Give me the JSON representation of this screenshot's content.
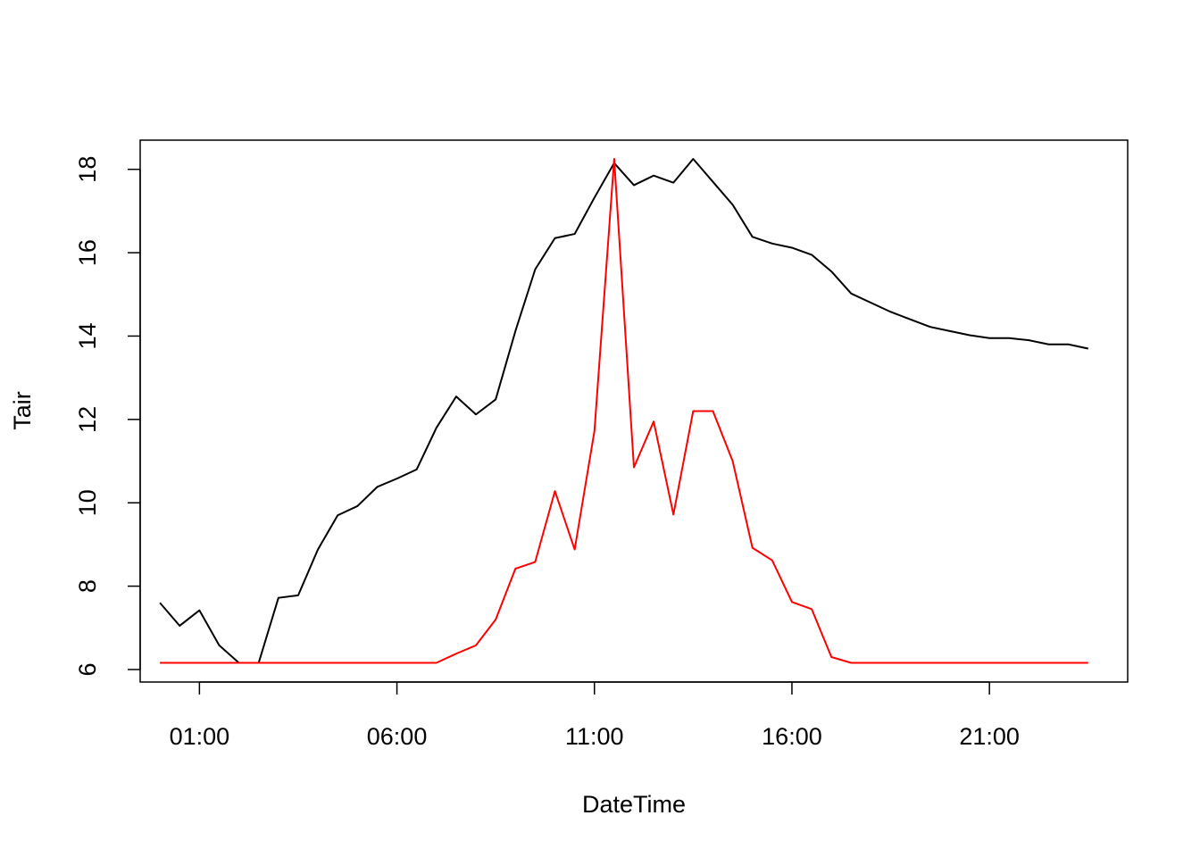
{
  "chart_data": {
    "type": "line",
    "title": "",
    "xlabel": "DateTime",
    "ylabel": "Tair",
    "x_unit": "hours",
    "xlim": [
      -0.5,
      24.5
    ],
    "ylim": [
      5.7,
      18.7
    ],
    "x_ticks": [
      {
        "value": 1,
        "label": "01:00"
      },
      {
        "value": 6,
        "label": "06:00"
      },
      {
        "value": 11,
        "label": "11:00"
      },
      {
        "value": 16,
        "label": "16:00"
      },
      {
        "value": 21,
        "label": "21:00"
      }
    ],
    "y_ticks": [
      {
        "value": 6,
        "label": "6"
      },
      {
        "value": 8,
        "label": "8"
      },
      {
        "value": 10,
        "label": "10"
      },
      {
        "value": 12,
        "label": "12"
      },
      {
        "value": 14,
        "label": "14"
      },
      {
        "value": 16,
        "label": "16"
      },
      {
        "value": 18,
        "label": "18"
      }
    ],
    "grid": false,
    "legend": "none",
    "x": [
      0,
      0.5,
      1,
      1.5,
      2,
      2.5,
      3,
      3.5,
      4,
      4.5,
      5,
      5.5,
      6,
      6.5,
      7,
      7.5,
      8,
      8.5,
      9,
      9.5,
      10,
      10.5,
      11,
      11.5,
      12,
      12.5,
      13,
      13.5,
      14,
      14.5,
      15,
      15.5,
      16,
      16.5,
      17,
      17.5,
      18,
      18.5,
      19,
      19.5,
      20,
      20.5,
      21,
      21.5,
      22,
      22.5,
      23,
      23.5
    ],
    "series": [
      {
        "color": "#000000",
        "values": [
          7.6,
          7.05,
          7.42,
          6.58,
          6.16,
          6.16,
          7.72,
          7.78,
          8.88,
          9.7,
          9.92,
          10.38,
          10.58,
          10.8,
          11.8,
          12.55,
          12.12,
          12.48,
          14.12,
          15.6,
          16.35,
          16.45,
          17.32,
          18.15,
          17.62,
          17.85,
          17.68,
          18.25,
          17.7,
          17.15,
          16.38,
          16.22,
          16.12,
          15.95,
          15.55,
          15.02,
          14.8,
          14.58,
          14.4,
          14.22,
          14.12,
          14.02,
          13.95,
          13.95,
          13.9,
          13.8,
          13.8,
          13.7
        ]
      },
      {
        "color": "#FF0000",
        "values": [
          6.16,
          6.16,
          6.16,
          6.16,
          6.16,
          6.16,
          6.16,
          6.16,
          6.16,
          6.16,
          6.16,
          6.16,
          6.16,
          6.16,
          6.16,
          6.38,
          6.58,
          7.2,
          8.42,
          8.58,
          10.28,
          8.88,
          11.72,
          18.25,
          10.85,
          11.95,
          9.72,
          12.2,
          12.2,
          11.0,
          8.92,
          8.62,
          7.62,
          7.45,
          6.3,
          6.16,
          6.16,
          6.16,
          6.16,
          6.16,
          6.16,
          6.16,
          6.16,
          6.16,
          6.16,
          6.16,
          6.16,
          6.16
        ]
      }
    ]
  }
}
